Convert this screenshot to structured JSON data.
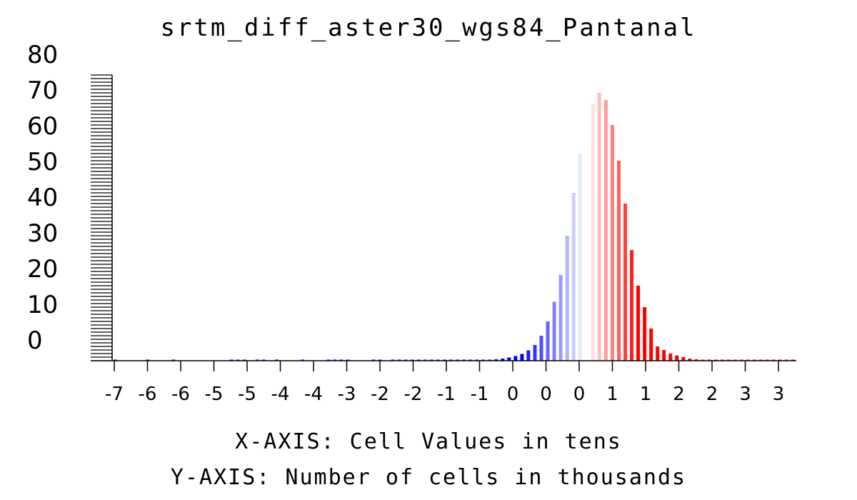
{
  "chart_data": {
    "type": "bar",
    "title": "srtm_diff_aster30_wgs84_Pantanal",
    "xlabel": "X-AXIS: Cell Values in tens",
    "ylabel": "Y-AXIS: Number of cells in thousands",
    "x_tick_labels": [
      "-7",
      "-6",
      "-6",
      "-5",
      "-5",
      "-4",
      "-4",
      "-3",
      "-2",
      "-2",
      "-1",
      "-1",
      "0",
      "0",
      "0",
      "1",
      "1",
      "2",
      "2",
      "3",
      "3"
    ],
    "y_tick_labels": [
      "0",
      "10",
      "20",
      "30",
      "40",
      "50",
      "60",
      "70",
      "80"
    ],
    "ylim": [
      0,
      80
    ],
    "grid": false,
    "legend": "none",
    "colormap": {
      "low": "#0000ff",
      "mid": "#ffffff",
      "high": "#ff0000"
    },
    "x": [
      -7.1,
      -6.6,
      -6.2,
      -5.3,
      -5.2,
      -5.1,
      -4.9,
      -4.8,
      -4.6,
      -4.2,
      -3.8,
      -3.7,
      -3.6,
      -3.5,
      -3.1,
      -3.0,
      -2.8,
      -2.7,
      -2.6,
      -2.5,
      -2.4,
      -2.3,
      -2.2,
      -2.1,
      -2.0,
      -1.9,
      -1.8,
      -1.7,
      -1.6,
      -1.5,
      -1.4,
      -1.3,
      -1.2,
      -1.1,
      -1.0,
      -0.9,
      -0.8,
      -0.7,
      -0.6,
      -0.5,
      -0.4,
      -0.3,
      -0.2,
      -0.1,
      0.0,
      0.1,
      0.2,
      0.3,
      0.4,
      0.5,
      0.6,
      0.7,
      0.8,
      0.9,
      1.0,
      1.1,
      1.2,
      1.3,
      1.4,
      1.5,
      1.6,
      1.7,
      1.8,
      1.9,
      2.0,
      2.1,
      2.2,
      2.3,
      2.4,
      2.5,
      2.6,
      2.7,
      2.8,
      2.9,
      3.0,
      3.1,
      3.2,
      3.3,
      3.4
    ],
    "values": [
      0.1,
      0.1,
      0.1,
      0.1,
      0.1,
      0.1,
      0.1,
      0.1,
      0.1,
      0.1,
      0.1,
      0.1,
      0.1,
      0.1,
      0.1,
      0.1,
      0.1,
      0.1,
      0.1,
      0.1,
      0.1,
      0.1,
      0.1,
      0.1,
      0.1,
      0.1,
      0.1,
      0.1,
      0.1,
      0.2,
      0.2,
      0.3,
      0.4,
      0.6,
      0.9,
      1.3,
      1.9,
      2.9,
      4.4,
      7.0,
      11.0,
      16.5,
      24.0,
      35.0,
      47.0,
      58.0,
      67.0,
      72.0,
      75.0,
      73.0,
      66.0,
      56.0,
      44.0,
      31.0,
      21.0,
      15.0,
      9.0,
      4.0,
      3.0,
      2.0,
      1.5,
      1.0,
      0.6,
      0.4,
      0.2,
      0.2,
      0.1,
      0.1,
      0.1,
      0.1,
      0.1,
      0.1,
      0.1,
      0.1,
      0.1,
      0.1,
      0.1,
      0.1,
      0.1
    ]
  }
}
